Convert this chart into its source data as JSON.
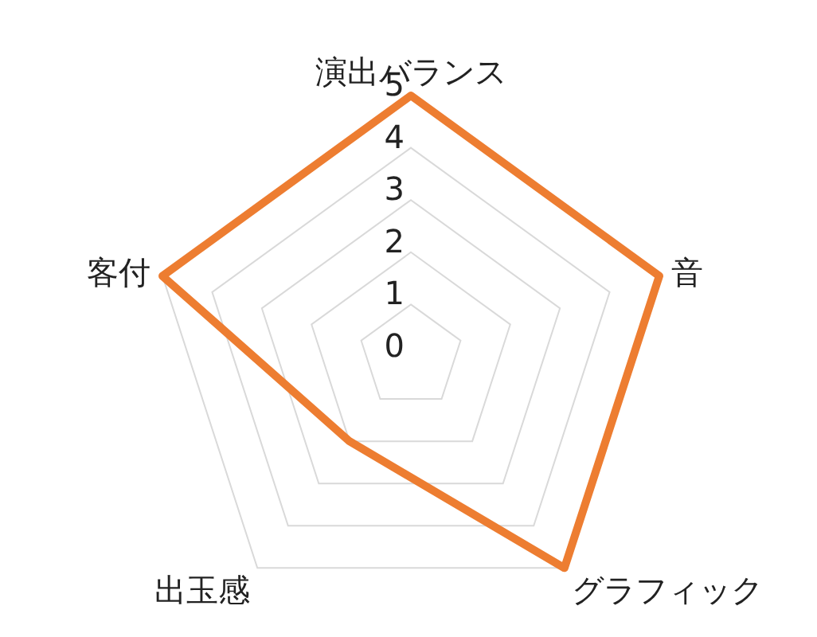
{
  "chart_data": {
    "type": "radar",
    "categories": [
      "演出バランス",
      "音",
      "グラフィック",
      "出玉感",
      "客付"
    ],
    "series": [
      {
        "color": "#ed7d31",
        "values": [
          5,
          5,
          5,
          2,
          5
        ]
      }
    ],
    "ylim": [
      0,
      5
    ],
    "yticks": [
      0,
      1,
      2,
      3,
      4,
      5
    ],
    "grid": true,
    "marker": "none"
  }
}
